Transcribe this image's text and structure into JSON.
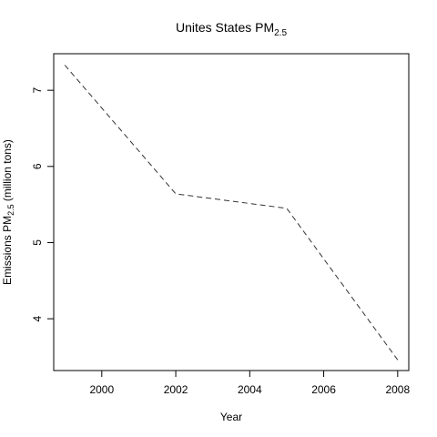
{
  "chart_data": {
    "type": "line",
    "title": "Unites States  PM",
    "title_subscript": "2.5",
    "xlabel": "Year",
    "ylabel_prefix": "Emissions  PM",
    "ylabel_subscript": "2.5",
    "ylabel_suffix": " (million tons)",
    "x": [
      1999,
      2002,
      2005,
      2008
    ],
    "series": [
      {
        "values": [
          7.33,
          5.64,
          5.45,
          3.46
        ],
        "color": "#333333",
        "line_style": "dashed"
      }
    ],
    "xlim": [
      1998.7,
      2008.3
    ],
    "ylim": [
      3.32,
      7.48
    ],
    "x_ticks": [
      2000,
      2002,
      2004,
      2006,
      2008
    ],
    "y_ticks": [
      4,
      5,
      6,
      7
    ],
    "grid": false,
    "legend": "none"
  }
}
